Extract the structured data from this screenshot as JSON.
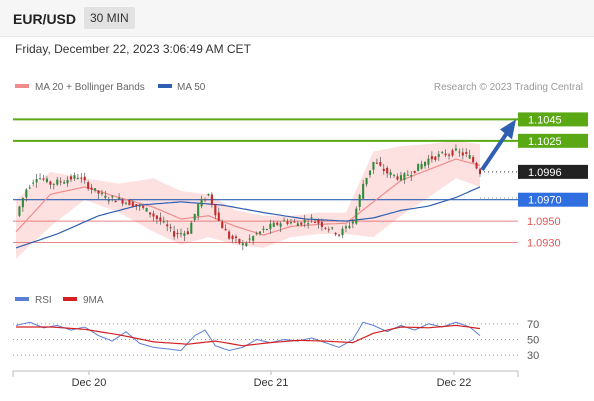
{
  "header": {
    "pair": "EUR/USD",
    "timeframe": "30 MIN",
    "timestamp": "Friday, December 22, 2023 3:06:49 AM CET"
  },
  "legend": {
    "ma20_label": "MA 20 + Bollinger Bands",
    "ma50_label": "MA 50",
    "source": "Research © 2023 Trading Central"
  },
  "rsi_legend": {
    "rsi_label": "RSI",
    "ma_label": "9MA"
  },
  "colors": {
    "ma20": "#f08c8c",
    "ma50": "#2f5fb0",
    "band": "#fcd6d6",
    "up": "#2e8b3a",
    "down": "#c62828",
    "resistance": "#5aa814",
    "support": "#e05555",
    "rsi": "#5b7fd6",
    "rsi_ma": "#d42020"
  },
  "chart_data": {
    "type": "candlestick",
    "ylim": [
      1.0895,
      1.1065
    ],
    "x_labels": [
      "Dec 20",
      "Dec 21",
      "Dec 22"
    ],
    "last_price": 1.0996,
    "levels": [
      {
        "label": "1.1045",
        "value": 1.1045,
        "kind": "resistance"
      },
      {
        "label": "1.1025",
        "value": 1.1025,
        "kind": "resistance"
      },
      {
        "label": "1.0970",
        "value": 1.097,
        "kind": "pivot"
      },
      {
        "label": "1.0950",
        "value": 1.095,
        "kind": "support"
      },
      {
        "label": "1.0930",
        "value": 1.093,
        "kind": "support"
      }
    ],
    "last_label": "1.0996",
    "arrow_target": 1.1045,
    "price_path": [
      [
        0,
        1.0955
      ],
      [
        3,
        1.098
      ],
      [
        6,
        1.0992
      ],
      [
        10,
        1.0985
      ],
      [
        14,
        1.0988
      ],
      [
        18,
        1.0992
      ],
      [
        22,
        1.098
      ],
      [
        26,
        1.0972
      ],
      [
        30,
        1.097
      ],
      [
        34,
        1.0966
      ],
      [
        38,
        1.096
      ],
      [
        42,
        1.095
      ],
      [
        46,
        1.0938
      ],
      [
        50,
        1.094
      ],
      [
        53,
        1.0965
      ],
      [
        56,
        1.0975
      ],
      [
        59,
        1.095
      ],
      [
        62,
        1.0935
      ],
      [
        66,
        1.0928
      ],
      [
        70,
        1.0938
      ],
      [
        74,
        1.0945
      ],
      [
        78,
        1.095
      ],
      [
        82,
        1.0948
      ],
      [
        86,
        1.0952
      ],
      [
        90,
        1.0945
      ],
      [
        94,
        1.0938
      ],
      [
        98,
        1.095
      ],
      [
        101,
        1.0985
      ],
      [
        104,
        1.1005
      ],
      [
        108,
        1.0995
      ],
      [
        112,
        1.099
      ],
      [
        116,
        1.0998
      ],
      [
        120,
        1.1008
      ],
      [
        124,
        1.1012
      ],
      [
        128,
        1.1015
      ],
      [
        132,
        1.101
      ],
      [
        135,
        1.0996
      ]
    ],
    "ma20": [
      [
        0,
        1.094
      ],
      [
        10,
        1.0975
      ],
      [
        20,
        1.0982
      ],
      [
        30,
        1.0972
      ],
      [
        40,
        1.0963
      ],
      [
        48,
        1.0952
      ],
      [
        56,
        1.0955
      ],
      [
        64,
        1.0945
      ],
      [
        72,
        1.0937
      ],
      [
        80,
        1.0945
      ],
      [
        88,
        1.0947
      ],
      [
        96,
        1.0948
      ],
      [
        104,
        1.0968
      ],
      [
        112,
        1.0988
      ],
      [
        120,
        1.0998
      ],
      [
        128,
        1.1008
      ],
      [
        135,
        1.1002
      ]
    ],
    "band_upper": [
      [
        0,
        1.097
      ],
      [
        10,
        1.0996
      ],
      [
        20,
        1.099
      ],
      [
        30,
        1.0985
      ],
      [
        40,
        1.099
      ],
      [
        48,
        1.0978
      ],
      [
        56,
        1.0975
      ],
      [
        64,
        1.096
      ],
      [
        72,
        1.0955
      ],
      [
        80,
        1.0955
      ],
      [
        88,
        1.0958
      ],
      [
        96,
        1.0958
      ],
      [
        104,
        1.1015
      ],
      [
        112,
        1.102
      ],
      [
        120,
        1.1022
      ],
      [
        128,
        1.1025
      ],
      [
        135,
        1.1022
      ]
    ],
    "band_lower": [
      [
        0,
        1.0915
      ],
      [
        10,
        1.0945
      ],
      [
        20,
        1.097
      ],
      [
        30,
        1.0958
      ],
      [
        40,
        1.094
      ],
      [
        48,
        1.0928
      ],
      [
        56,
        1.0935
      ],
      [
        64,
        1.0928
      ],
      [
        72,
        1.0925
      ],
      [
        80,
        1.0935
      ],
      [
        88,
        1.0938
      ],
      [
        96,
        1.0938
      ],
      [
        104,
        1.0935
      ],
      [
        112,
        1.0955
      ],
      [
        120,
        1.0972
      ],
      [
        128,
        1.099
      ],
      [
        135,
        1.0982
      ]
    ],
    "ma50": [
      [
        0,
        1.0925
      ],
      [
        12,
        1.0938
      ],
      [
        24,
        1.0955
      ],
      [
        36,
        1.0965
      ],
      [
        48,
        1.0968
      ],
      [
        60,
        1.0965
      ],
      [
        72,
        1.0958
      ],
      [
        84,
        1.0952
      ],
      [
        96,
        1.095
      ],
      [
        104,
        1.0953
      ],
      [
        112,
        1.096
      ],
      [
        120,
        1.0964
      ],
      [
        128,
        1.0972
      ],
      [
        135,
        1.0982
      ]
    ],
    "rsi": {
      "ylim": [
        20,
        80
      ],
      "ticks": [
        "70",
        "50",
        "30"
      ],
      "tick_values": [
        70,
        50,
        30
      ],
      "rsi_path": [
        [
          0,
          68
        ],
        [
          4,
          72
        ],
        [
          8,
          65
        ],
        [
          12,
          68
        ],
        [
          16,
          62
        ],
        [
          20,
          66
        ],
        [
          24,
          55
        ],
        [
          28,
          48
        ],
        [
          32,
          60
        ],
        [
          36,
          45
        ],
        [
          40,
          40
        ],
        [
          44,
          38
        ],
        [
          48,
          36
        ],
        [
          52,
          55
        ],
        [
          55,
          62
        ],
        [
          58,
          42
        ],
        [
          62,
          36
        ],
        [
          66,
          40
        ],
        [
          70,
          50
        ],
        [
          74,
          46
        ],
        [
          78,
          50
        ],
        [
          82,
          48
        ],
        [
          86,
          52
        ],
        [
          90,
          46
        ],
        [
          94,
          40
        ],
        [
          98,
          50
        ],
        [
          101,
          72
        ],
        [
          104,
          68
        ],
        [
          108,
          60
        ],
        [
          112,
          68
        ],
        [
          116,
          62
        ],
        [
          120,
          70
        ],
        [
          124,
          66
        ],
        [
          128,
          72
        ],
        [
          132,
          66
        ],
        [
          135,
          55
        ]
      ],
      "ma_path": [
        [
          0,
          66
        ],
        [
          10,
          66
        ],
        [
          20,
          63
        ],
        [
          30,
          56
        ],
        [
          40,
          47
        ],
        [
          50,
          44
        ],
        [
          58,
          48
        ],
        [
          66,
          42
        ],
        [
          74,
          46
        ],
        [
          82,
          49
        ],
        [
          90,
          48
        ],
        [
          98,
          46
        ],
        [
          104,
          58
        ],
        [
          112,
          66
        ],
        [
          120,
          65
        ],
        [
          128,
          68
        ],
        [
          135,
          64
        ]
      ]
    }
  }
}
